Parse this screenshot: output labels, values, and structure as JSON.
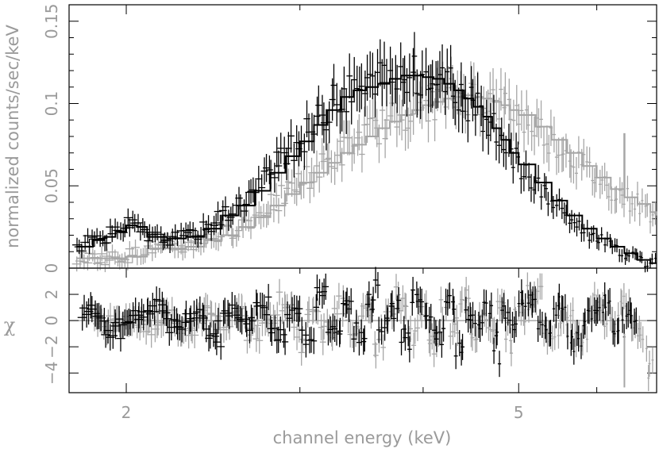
{
  "chart_data": [
    {
      "type": "line",
      "panel": "spectrum",
      "ylabel": "normalized counts/sec/keV",
      "xscale": "log",
      "xlim": [
        1.75,
        6.9
      ],
      "ylim": [
        0,
        0.16
      ],
      "yticks": [
        0,
        0.05,
        0.1,
        0.15
      ],
      "ytick_labels": [
        "0",
        "0.05",
        "0.1",
        "0.15"
      ],
      "grid": false,
      "series": [
        {
          "color": "#000000",
          "x": [
            1.78,
            1.85,
            1.9,
            1.95,
            2.0,
            2.05,
            2.1,
            2.2,
            2.3,
            2.4,
            2.5,
            2.6,
            2.7,
            2.8,
            2.9,
            3.0,
            3.1,
            3.2,
            3.3,
            3.4,
            3.5,
            3.6,
            3.7,
            3.8,
            3.9,
            4.0,
            4.1,
            4.2,
            4.3,
            4.4,
            4.5,
            4.6,
            4.7,
            4.8,
            4.9,
            5.0,
            5.2,
            5.4,
            5.6,
            5.8,
            6.0,
            6.2,
            6.4,
            6.6,
            6.8,
            6.9
          ],
          "y": [
            0.013,
            0.017,
            0.019,
            0.022,
            0.026,
            0.025,
            0.019,
            0.018,
            0.019,
            0.024,
            0.032,
            0.038,
            0.047,
            0.058,
            0.068,
            0.077,
            0.087,
            0.096,
            0.104,
            0.108,
            0.11,
            0.112,
            0.115,
            0.117,
            0.117,
            0.116,
            0.115,
            0.112,
            0.108,
            0.103,
            0.098,
            0.092,
            0.085,
            0.078,
            0.07,
            0.063,
            0.052,
            0.041,
            0.032,
            0.024,
            0.018,
            0.013,
            0.009,
            0.005,
            0.003,
            0.003
          ]
        },
        {
          "color": "#a6a6a6",
          "x": [
            1.78,
            1.9,
            2.0,
            2.1,
            2.2,
            2.3,
            2.4,
            2.5,
            2.6,
            2.7,
            2.8,
            2.9,
            3.0,
            3.1,
            3.2,
            3.3,
            3.4,
            3.5,
            3.6,
            3.7,
            3.8,
            3.9,
            4.0,
            4.1,
            4.2,
            4.3,
            4.4,
            4.5,
            4.6,
            4.7,
            4.8,
            4.9,
            5.0,
            5.2,
            5.4,
            5.6,
            5.8,
            6.0,
            6.2,
            6.4,
            6.6,
            6.8,
            6.9
          ],
          "y": [
            0.006,
            0.006,
            0.007,
            0.012,
            0.012,
            0.013,
            0.017,
            0.02,
            0.025,
            0.031,
            0.038,
            0.045,
            0.052,
            0.058,
            0.064,
            0.07,
            0.075,
            0.08,
            0.085,
            0.089,
            0.093,
            0.096,
            0.099,
            0.101,
            0.103,
            0.104,
            0.105,
            0.104,
            0.103,
            0.101,
            0.099,
            0.096,
            0.093,
            0.086,
            0.078,
            0.07,
            0.062,
            0.055,
            0.048,
            0.043,
            0.039,
            0.034,
            0.032
          ]
        }
      ]
    },
    {
      "type": "scatter",
      "panel": "residuals",
      "xlabel": "channel energy (keV)",
      "ylabel": "χ",
      "xscale": "log",
      "xlim": [
        1.75,
        6.9
      ],
      "ylim": [
        -5.5,
        4
      ],
      "xticks": [
        2,
        5
      ],
      "xtick_labels": [
        "2",
        "5"
      ],
      "yticks": [
        -4,
        -2,
        0,
        2
      ],
      "ytick_labels": [
        "−4",
        "−2",
        "0",
        "2"
      ],
      "grid": false,
      "series": [
        {
          "color": "#000000",
          "x": [
            1.8,
            1.9,
            2.0,
            2.1,
            2.2,
            2.3,
            2.4,
            2.5,
            2.6,
            2.7,
            2.8,
            2.9,
            3.0,
            3.1,
            3.2,
            3.3,
            3.4,
            3.5,
            3.6,
            3.7,
            3.8,
            3.9,
            4.0,
            4.1,
            4.2,
            4.3,
            4.4,
            4.5,
            4.6,
            4.7,
            4.8,
            4.9,
            5.0,
            5.2,
            5.4,
            5.6,
            5.8,
            6.0,
            6.2,
            6.4,
            6.6
          ],
          "y": [
            0.8,
            -0.9,
            0.3,
            1.2,
            -0.6,
            0.5,
            -1.5,
            1.0,
            -0.4,
            1.8,
            -1.2,
            0.6,
            -2.1,
            2.4,
            -0.8,
            1.5,
            -1.8,
            2.9,
            -0.5,
            1.1,
            -2.3,
            2.2,
            0.4,
            -1.6,
            1.9,
            -2.7,
            0.9,
            -1.1,
            1.6,
            -3.8,
            0.7,
            -1.4,
            2.0,
            -0.9,
            1.3,
            -2.2,
            0.5,
            1.8,
            -1.0,
            0.4,
            3.0
          ]
        },
        {
          "color": "#a6a6a6",
          "x": [
            1.85,
            1.95,
            2.05,
            2.15,
            2.25,
            2.35,
            2.45,
            2.55,
            2.65,
            2.75,
            2.85,
            2.95,
            3.05,
            3.15,
            3.25,
            3.35,
            3.45,
            3.55,
            3.65,
            3.75,
            3.85,
            3.95,
            4.05,
            4.15,
            4.25,
            4.35,
            4.45,
            4.55,
            4.65,
            4.75,
            4.85,
            4.95,
            5.1,
            5.3,
            5.5,
            5.7,
            5.9,
            6.1,
            6.3,
            6.5,
            6.7,
            6.85
          ],
          "y": [
            -0.4,
            0.2,
            -0.6,
            0.5,
            -1.1,
            0.8,
            -0.3,
            1.3,
            -1.6,
            0.4,
            1.7,
            -2.0,
            0.9,
            -1.3,
            2.1,
            -0.7,
            1.4,
            -2.4,
            0.6,
            2.3,
            -1.5,
            1.0,
            -2.6,
            1.7,
            -0.8,
            2.5,
            -1.9,
            0.3,
            -1.2,
            1.9,
            -2.3,
            0.8,
            2.6,
            -1.4,
            0.5,
            -2.0,
            1.6,
            -0.6,
            2.2,
            -1.7,
            -4.7,
            0.7
          ]
        }
      ]
    }
  ],
  "series_style": {
    "black_data": "#000000",
    "grey_data": "#a6a6a6",
    "axis_color": "#000000",
    "label_color": "#9a9a9a"
  }
}
